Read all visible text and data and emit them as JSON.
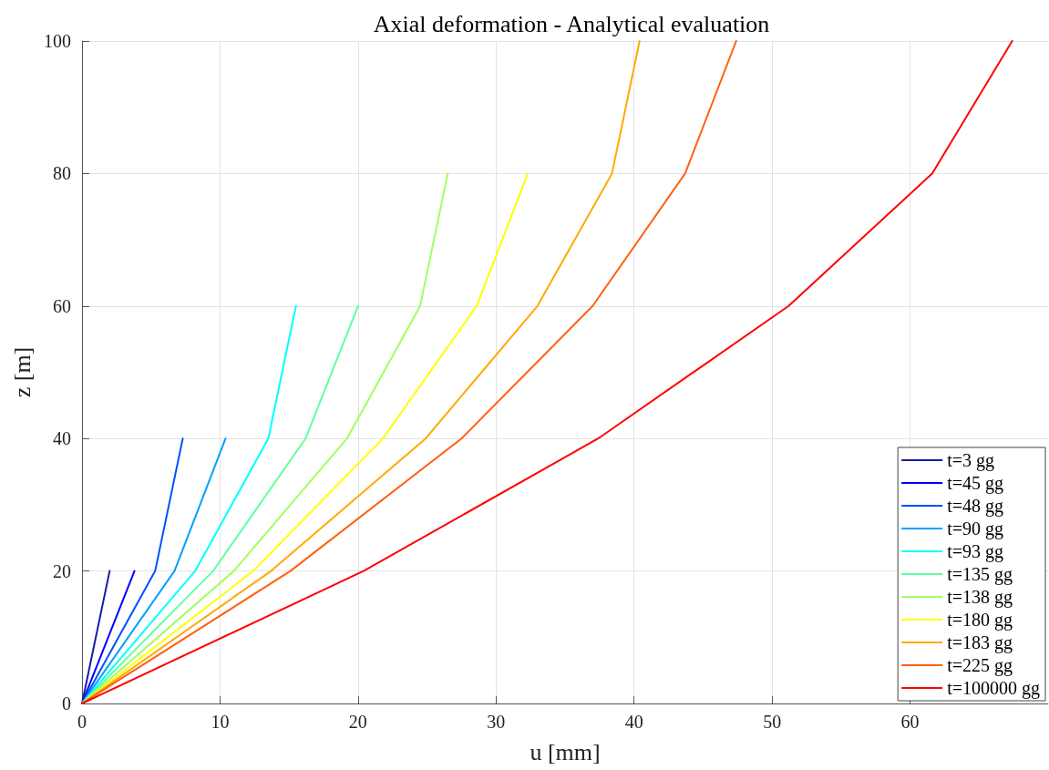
{
  "chart_data": {
    "type": "line",
    "title": "Axial deformation - Analytical evaluation",
    "xlabel": "u [mm]",
    "ylabel": "z [m]",
    "xlim": [
      0,
      70
    ],
    "xticks": [
      0,
      10,
      20,
      30,
      40,
      50,
      60
    ],
    "ylim": [
      0,
      100
    ],
    "yticks": [
      0,
      20,
      40,
      60,
      80,
      100
    ],
    "grid": true,
    "legend": "bottom right",
    "marker": "none",
    "line_style": "solid",
    "series": [
      {
        "name": "t=3 gg",
        "color": "#1a1aa6",
        "x": [
          0,
          2.0
        ],
        "values": [
          0,
          20
        ]
      },
      {
        "name": "t=45 gg",
        "color": "#0000ff",
        "x": [
          0,
          3.8
        ],
        "values": [
          0,
          20
        ]
      },
      {
        "name": "t=48 gg",
        "color": "#0050ff",
        "x": [
          0,
          5.3,
          7.3
        ],
        "values": [
          0,
          20,
          40
        ]
      },
      {
        "name": "t=90 gg",
        "color": "#00a0ff",
        "x": [
          0,
          6.7,
          10.4
        ],
        "values": [
          0,
          20,
          40
        ]
      },
      {
        "name": "t=93 gg",
        "color": "#00ffff",
        "x": [
          0,
          8.2,
          13.5,
          15.5
        ],
        "values": [
          0,
          20,
          40,
          60
        ]
      },
      {
        "name": "t=135 gg",
        "color": "#60ffa0",
        "x": [
          0,
          9.5,
          16.2,
          20.0
        ],
        "values": [
          0,
          20,
          40,
          60
        ]
      },
      {
        "name": "t=138 gg",
        "color": "#a0ff60",
        "x": [
          0,
          11.0,
          19.2,
          24.5,
          26.5
        ],
        "values": [
          0,
          20,
          40,
          60,
          80
        ]
      },
      {
        "name": "t=180 gg",
        "color": "#ffff00",
        "x": [
          0,
          12.4,
          21.8,
          28.6,
          32.3
        ],
        "values": [
          0,
          20,
          40,
          60,
          80
        ]
      },
      {
        "name": "t=183 gg",
        "color": "#ffaa00",
        "x": [
          0,
          13.7,
          24.9,
          33.0,
          38.4,
          40.4
        ],
        "values": [
          0,
          20,
          40,
          60,
          80,
          100
        ]
      },
      {
        "name": "t=225 gg",
        "color": "#ff6010",
        "x": [
          0,
          15.1,
          27.5,
          37.0,
          43.7,
          47.4
        ],
        "values": [
          0,
          20,
          40,
          60,
          80,
          100
        ]
      },
      {
        "name": "t=100000 gg",
        "color": "#ff0000",
        "x": [
          0,
          20.4,
          37.4,
          51.2,
          61.6,
          67.4
        ],
        "values": [
          0,
          20,
          40,
          60,
          80,
          100
        ]
      }
    ]
  }
}
